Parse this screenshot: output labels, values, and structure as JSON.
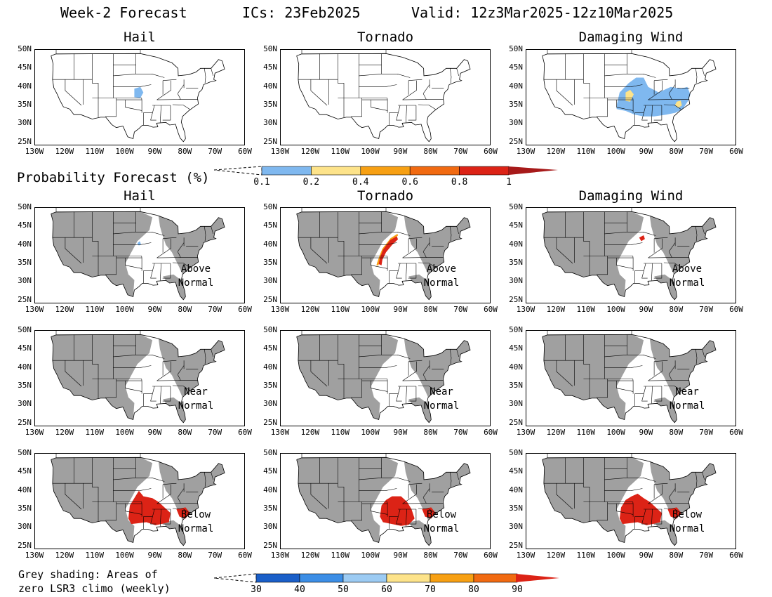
{
  "header": {
    "title": "Week-2 Forecast",
    "ics": "ICs: 23Feb2025",
    "valid": "Valid: 12z3Mar2025-12z10Mar2025"
  },
  "columns": [
    "Hail",
    "Tornado",
    "Damaging Wind"
  ],
  "prob_section": {
    "label": "Probability Forecast (%)",
    "colorbar": {
      "ticks": [
        "0.1",
        "0.2",
        "0.4",
        "0.6",
        "0.8",
        "1"
      ],
      "colors": [
        "#7fb8ef",
        "#fde38a",
        "#f7a013",
        "#f16a11",
        "#dc2316",
        "#a71a1a"
      ]
    }
  },
  "lat_ticks": [
    "50N",
    "45N",
    "40N",
    "35N",
    "30N",
    "25N"
  ],
  "lon_ticks": [
    "130W",
    "120W",
    "110W",
    "100W",
    "90W",
    "80W",
    "70W",
    "60W"
  ],
  "regimes": [
    {
      "line1": "Above",
      "line2": "Normal"
    },
    {
      "line1": "Near",
      "line2": "Normal"
    },
    {
      "line1": "Below",
      "line2": "Normal"
    }
  ],
  "footnote": {
    "line1": "Grey shading: Areas of",
    "line2": "zero LSR3 climo (weekly)"
  },
  "bottom_colorbar": {
    "ticks": [
      "30",
      "40",
      "50",
      "60",
      "70",
      "80",
      "90"
    ],
    "colors": [
      "#1a5fc8",
      "#3c8ee6",
      "#9ccbf3",
      "#fde38a",
      "#f7a013",
      "#f16a11",
      "#dc2316"
    ]
  },
  "colors": {
    "grey_shading": "#a0a0a0",
    "light_blue": "#7fb8ef",
    "yellow": "#fde38a",
    "red": "#dc2316"
  }
}
